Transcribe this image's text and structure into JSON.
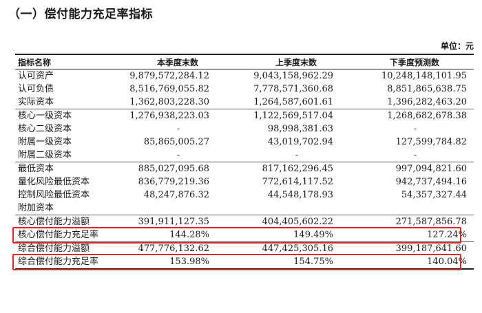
{
  "title": "（一）偿付能力充足率指标",
  "unit": "单位：元",
  "headers": [
    "指标名称",
    "本季度末数",
    "上季度末数",
    "下季度预测数"
  ],
  "groups": [
    {
      "rows": [
        {
          "label": "认可资产",
          "current": "9,879,572,284.12",
          "previous": "9,043,158,962.29",
          "forecast": "10,248,148,101.95"
        },
        {
          "label": "认可负债",
          "current": "8,516,769,055.82",
          "previous": "7,778,571,360.68",
          "forecast": "8,851,865,638.75"
        },
        {
          "label": "实际资本",
          "current": "1,362,803,228.30",
          "previous": "1,264,587,601.61",
          "forecast": "1,396,282,463.20"
        }
      ]
    },
    {
      "rows": [
        {
          "label": "核心一级资本",
          "current": "1,276,938,223.03",
          "previous": "1,122,569,517.04",
          "forecast": "1,268,682,678.38"
        },
        {
          "label": "核心二级资本",
          "current": "-",
          "previous": "98,998,381.63",
          "forecast": "-"
        },
        {
          "label": "附属一级资本",
          "current": "85,865,005.27",
          "previous": "43,019,702.94",
          "forecast": "127,599,784.82"
        },
        {
          "label": "附属二级资本",
          "current": "-",
          "previous": "-",
          "forecast": "-"
        }
      ]
    },
    {
      "rows": [
        {
          "label": "最低资本",
          "current": "885,027,095.68",
          "previous": "817,162,296.45",
          "forecast": "997,094,821.60"
        },
        {
          "label": "量化风险最低资本",
          "current": "836,779,219.36",
          "previous": "772,614,117.52",
          "forecast": "942,737,494.16"
        },
        {
          "label": "控制风险最低资本",
          "current": "48,247,876.32",
          "previous": "44,548,178.93",
          "forecast": "54,357,327.44"
        },
        {
          "label": "附加资本",
          "current": "",
          "previous": "",
          "forecast": ""
        }
      ]
    },
    {
      "rows": [
        {
          "label": "核心偿付能力溢额",
          "current": "391,911,127.35",
          "previous": "404,405,602.22",
          "forecast": "271,587,856.78"
        },
        {
          "label": "核心偿付能力充足率",
          "current": "144.28%",
          "previous": "149.49%",
          "forecast": "127.24%",
          "highlight": true
        }
      ]
    },
    {
      "rows": [
        {
          "label": "综合偿付能力溢额",
          "current": "477,776,132.62",
          "previous": "447,425,305.16",
          "forecast": "399,187,641.60"
        },
        {
          "label": "综合偿付能力充足率",
          "current": "153.98%",
          "previous": "154.75%",
          "forecast": "140.04%",
          "highlight": true
        }
      ]
    }
  ],
  "highlight_color": "#d42a2a"
}
